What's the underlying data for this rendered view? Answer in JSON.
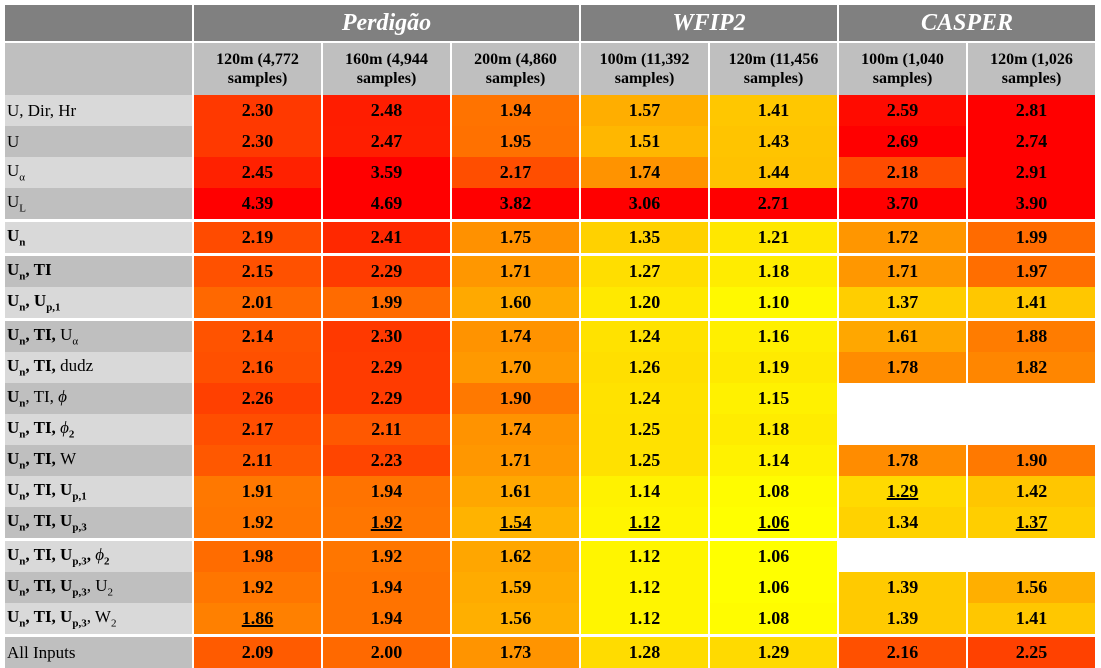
{
  "groups": [
    {
      "name": "Perdigão",
      "span": 3
    },
    {
      "name": "WFIP2",
      "span": 2
    },
    {
      "name": "CASPER",
      "span": 2
    }
  ],
  "columns": [
    [
      "120m (4,772",
      "samples)"
    ],
    [
      "160m (4,944",
      "samples)"
    ],
    [
      "200m (4,860",
      "samples)"
    ],
    [
      "100m (11,392",
      "samples)"
    ],
    [
      "120m (11,456",
      "samples)"
    ],
    [
      "100m (1,040",
      "samples)"
    ],
    [
      "120m (1,026",
      "samples)"
    ]
  ],
  "group_of_column": [
    0,
    0,
    0,
    1,
    1,
    2,
    2
  ],
  "rows": [
    {
      "label": [
        [
          "U, Dir, Hr",
          ""
        ]
      ],
      "values": [
        "2.30",
        "2.48",
        "1.94",
        "1.57",
        "1.41",
        "2.59",
        "2.81"
      ]
    },
    {
      "label": [
        [
          "U",
          ""
        ]
      ],
      "values": [
        "2.30",
        "2.47",
        "1.95",
        "1.51",
        "1.43",
        "2.69",
        "2.74"
      ]
    },
    {
      "label": [
        [
          "U",
          ""
        ],
        [
          "α",
          "sub"
        ]
      ],
      "values": [
        "2.45",
        "3.59",
        "2.17",
        "1.74",
        "1.44",
        "2.18",
        "2.91"
      ]
    },
    {
      "label": [
        [
          "U",
          ""
        ],
        [
          "L",
          "sub"
        ]
      ],
      "values": [
        "4.39",
        "4.69",
        "3.82",
        "3.06",
        "2.71",
        "3.70",
        "3.90"
      ]
    },
    {
      "label": [
        [
          "U",
          "b"
        ],
        [
          "n",
          "bsub"
        ]
      ],
      "values": [
        "2.19",
        "2.41",
        "1.75",
        "1.35",
        "1.21",
        "1.72",
        "1.99"
      ],
      "sep": true
    },
    {
      "label": [
        [
          "U",
          "b"
        ],
        [
          "n",
          "bsub"
        ],
        [
          ", TI",
          "b"
        ]
      ],
      "values": [
        "2.15",
        "2.29",
        "1.71",
        "1.27",
        "1.18",
        "1.71",
        "1.97"
      ],
      "sep": true
    },
    {
      "label": [
        [
          "U",
          "b"
        ],
        [
          "n",
          "bsub"
        ],
        [
          ", U",
          "b"
        ],
        [
          "p,1",
          "bsub"
        ]
      ],
      "values": [
        "2.01",
        "1.99",
        "1.60",
        "1.20",
        "1.10",
        "1.37",
        "1.41"
      ]
    },
    {
      "label": [
        [
          "U",
          "b"
        ],
        [
          "n",
          "bsub"
        ],
        [
          ", TI, ",
          "b"
        ],
        [
          "U",
          ""
        ],
        [
          "α",
          "sub"
        ]
      ],
      "values": [
        "2.14",
        "2.30",
        "1.74",
        "1.24",
        "1.16",
        "1.61",
        "1.88"
      ],
      "sep": true
    },
    {
      "label": [
        [
          "U",
          "b"
        ],
        [
          "n",
          "bsub"
        ],
        [
          ", TI, ",
          "b"
        ],
        [
          "dudz",
          ""
        ]
      ],
      "values": [
        "2.16",
        "2.29",
        "1.70",
        "1.26",
        "1.19",
        "1.78",
        "1.82"
      ]
    },
    {
      "label": [
        [
          "U",
          "b"
        ],
        [
          "n",
          "bsub"
        ],
        [
          ", TI, ",
          ""
        ],
        [
          "ϕ",
          "i"
        ]
      ],
      "values": [
        "2.26",
        "2.29",
        "1.90",
        "1.24",
        "1.15",
        "",
        ""
      ]
    },
    {
      "label": [
        [
          "U",
          "b"
        ],
        [
          "n",
          "bsub"
        ],
        [
          ", TI, ",
          "b"
        ],
        [
          "ϕ",
          "i"
        ],
        [
          "2",
          "bsub"
        ]
      ],
      "values": [
        "2.17",
        "2.11",
        "1.74",
        "1.25",
        "1.18",
        "",
        ""
      ]
    },
    {
      "label": [
        [
          "U",
          "b"
        ],
        [
          "n",
          "bsub"
        ],
        [
          ", TI, ",
          "b"
        ],
        [
          "W",
          ""
        ]
      ],
      "values": [
        "2.11",
        "2.23",
        "1.71",
        "1.25",
        "1.14",
        "1.78",
        "1.90"
      ]
    },
    {
      "label": [
        [
          "U",
          "b"
        ],
        [
          "n",
          "bsub"
        ],
        [
          ", TI, U",
          "b"
        ],
        [
          "p,1",
          "bsub"
        ]
      ],
      "values": [
        "1.91",
        "1.94",
        "1.61",
        "1.14",
        "1.08",
        "1.29",
        "1.42"
      ],
      "underline": [
        5
      ]
    },
    {
      "label": [
        [
          "U",
          "b"
        ],
        [
          "n",
          "bsub"
        ],
        [
          ", TI, U",
          "b"
        ],
        [
          "p,3",
          "bsub"
        ]
      ],
      "values": [
        "1.92",
        "1.92",
        "1.54",
        "1.12",
        "1.06",
        "1.34",
        "1.37"
      ],
      "underline": [
        1,
        2,
        3,
        4,
        6
      ]
    },
    {
      "label": [
        [
          "U",
          "b"
        ],
        [
          "n",
          "bsub"
        ],
        [
          ", TI, U",
          "b"
        ],
        [
          "p,3",
          "bsub"
        ],
        [
          ", ",
          "b"
        ],
        [
          "ϕ",
          "i"
        ],
        [
          "2",
          "bsub"
        ]
      ],
      "values": [
        "1.98",
        "1.92",
        "1.62",
        "1.12",
        "1.06",
        "",
        ""
      ],
      "sep": true
    },
    {
      "label": [
        [
          "U",
          "b"
        ],
        [
          "n",
          "bsub"
        ],
        [
          ", TI, U",
          "b"
        ],
        [
          "p,3",
          "bsub"
        ],
        [
          ", U",
          ""
        ],
        [
          "2",
          "sub"
        ]
      ],
      "values": [
        "1.92",
        "1.94",
        "1.59",
        "1.12",
        "1.06",
        "1.39",
        "1.56"
      ]
    },
    {
      "label": [
        [
          "U",
          "b"
        ],
        [
          "n",
          "bsub"
        ],
        [
          ", TI, U",
          "b"
        ],
        [
          "p,3",
          "bsub"
        ],
        [
          ", W",
          ""
        ],
        [
          "2",
          "sub"
        ]
      ],
      "values": [
        "1.86",
        "1.94",
        "1.56",
        "1.12",
        "1.08",
        "1.39",
        "1.41"
      ],
      "underline": [
        0
      ]
    },
    {
      "label": [
        [
          "All Inputs",
          ""
        ]
      ],
      "values": [
        "2.09",
        "2.00",
        "1.73",
        "1.28",
        "1.29",
        "2.16",
        "2.25"
      ],
      "sep": true
    }
  ]
}
